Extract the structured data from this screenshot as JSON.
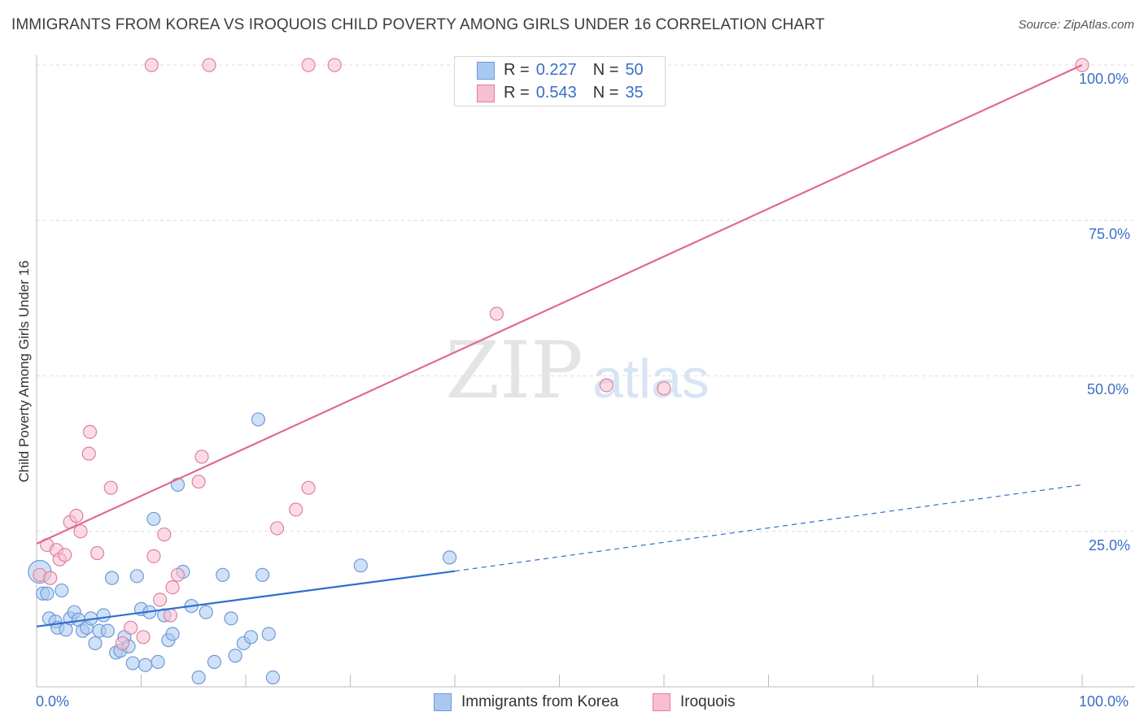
{
  "header": {
    "title": "IMMIGRANTS FROM KOREA VS IROQUOIS CHILD POVERTY AMONG GIRLS UNDER 16 CORRELATION CHART",
    "source": "Source: ZipAtlas.com"
  },
  "watermark": {
    "zip": "ZIP",
    "atlas": "atlas"
  },
  "legend": {
    "rows": [
      {
        "r_label": "R =",
        "r_value": "0.227",
        "n_label": "N =",
        "n_value": "50",
        "color": "#a9c8f0",
        "border": "#6d9ad8"
      },
      {
        "r_label": "R =",
        "r_value": "0.543",
        "n_label": "N =",
        "n_value": "35",
        "color": "#f7bfd0",
        "border": "#e07fa0"
      }
    ]
  },
  "bottom_legend": [
    {
      "label": "Immigrants from Korea",
      "color": "#a9c8f0",
      "border": "#6d9ad8"
    },
    {
      "label": "Iroquois",
      "color": "#f7bfd0",
      "border": "#e07fa0"
    }
  ],
  "axes": {
    "y_title": "Child Poverty Among Girls Under 16",
    "y_ticks": [
      "100.0%",
      "75.0%",
      "50.0%",
      "25.0%"
    ],
    "x_ticks": [
      "0.0%",
      "100.0%"
    ]
  },
  "chart_data": {
    "type": "scatter",
    "title": "IMMIGRANTS FROM KOREA VS IROQUOIS CHILD POVERTY AMONG GIRLS UNDER 16 CORRELATION CHART",
    "xlabel": "",
    "ylabel": "Child Poverty Among Girls Under 16",
    "xlim": [
      0,
      100
    ],
    "ylim": [
      0,
      100
    ],
    "grid": true,
    "legend_position": "top-center",
    "series": [
      {
        "name": "Immigrants from Korea",
        "color": "#6d9ad8",
        "fill": "#a9c8f0",
        "line_color": "#2f6fd0",
        "trend": {
          "x0": 0,
          "y0": 9.7,
          "x1": 40,
          "y1": 18.6,
          "dashed_to_x": 100,
          "dashed_to_y": 32.5
        },
        "points": [
          [
            0.3,
            18.5
          ],
          [
            0.6,
            15.0
          ],
          [
            1.2,
            11.0
          ],
          [
            1.8,
            10.5
          ],
          [
            2.0,
            9.5
          ],
          [
            2.4,
            15.5
          ],
          [
            2.8,
            9.2
          ],
          [
            3.2,
            11.0
          ],
          [
            3.6,
            12.0
          ],
          [
            4.0,
            10.8
          ],
          [
            4.4,
            9.0
          ],
          [
            4.8,
            9.5
          ],
          [
            5.2,
            11.0
          ],
          [
            5.6,
            7.0
          ],
          [
            6.0,
            9.0
          ],
          [
            6.4,
            11.5
          ],
          [
            6.8,
            9.0
          ],
          [
            7.2,
            17.5
          ],
          [
            7.6,
            5.5
          ],
          [
            8.0,
            5.8
          ],
          [
            8.4,
            8.0
          ],
          [
            8.8,
            6.5
          ],
          [
            9.2,
            3.8
          ],
          [
            9.6,
            17.8
          ],
          [
            10.0,
            12.5
          ],
          [
            10.4,
            3.5
          ],
          [
            10.8,
            12.0
          ],
          [
            11.2,
            27.0
          ],
          [
            11.6,
            4.0
          ],
          [
            12.2,
            11.5
          ],
          [
            12.6,
            7.5
          ],
          [
            13.0,
            8.5
          ],
          [
            13.5,
            32.5
          ],
          [
            14.0,
            18.5
          ],
          [
            14.8,
            13.0
          ],
          [
            15.5,
            1.5
          ],
          [
            16.2,
            12.0
          ],
          [
            17.0,
            4.0
          ],
          [
            17.8,
            18.0
          ],
          [
            18.6,
            11.0
          ],
          [
            19.0,
            5.0
          ],
          [
            19.8,
            7.0
          ],
          [
            20.5,
            8.0
          ],
          [
            21.2,
            43.0
          ],
          [
            21.6,
            18.0
          ],
          [
            22.2,
            8.5
          ],
          [
            22.6,
            1.5
          ],
          [
            31.0,
            19.5
          ],
          [
            39.5,
            20.8
          ],
          [
            1.0,
            15.0
          ]
        ]
      },
      {
        "name": "Iroquois",
        "color": "#e07fa0",
        "fill": "#f7bfd0",
        "line_color": "#e06a93",
        "trend": {
          "x0": 0,
          "y0": 23.0,
          "x1": 100,
          "y1": 100.0
        },
        "points": [
          [
            0.3,
            18.0
          ],
          [
            1.0,
            22.8
          ],
          [
            1.3,
            17.5
          ],
          [
            1.9,
            22.0
          ],
          [
            2.2,
            20.5
          ],
          [
            2.7,
            21.2
          ],
          [
            3.2,
            26.5
          ],
          [
            3.8,
            27.5
          ],
          [
            4.2,
            25.0
          ],
          [
            5.0,
            37.5
          ],
          [
            5.1,
            41.0
          ],
          [
            5.8,
            21.5
          ],
          [
            7.1,
            32.0
          ],
          [
            8.2,
            7.0
          ],
          [
            9.0,
            9.5
          ],
          [
            10.2,
            8.0
          ],
          [
            11.2,
            21.0
          ],
          [
            11.8,
            14.0
          ],
          [
            12.2,
            24.5
          ],
          [
            12.8,
            11.5
          ],
          [
            13.0,
            16.0
          ],
          [
            13.5,
            18.0
          ],
          [
            15.5,
            33.0
          ],
          [
            15.8,
            37.0
          ],
          [
            23.0,
            25.5
          ],
          [
            24.8,
            28.5
          ],
          [
            26.0,
            32.0
          ],
          [
            11.0,
            100.0
          ],
          [
            16.5,
            100.0
          ],
          [
            26.0,
            100.0
          ],
          [
            28.5,
            100.0
          ],
          [
            44.0,
            60.0
          ],
          [
            54.5,
            48.5
          ],
          [
            60.0,
            48.0
          ],
          [
            100.0,
            100.0
          ]
        ]
      }
    ]
  }
}
